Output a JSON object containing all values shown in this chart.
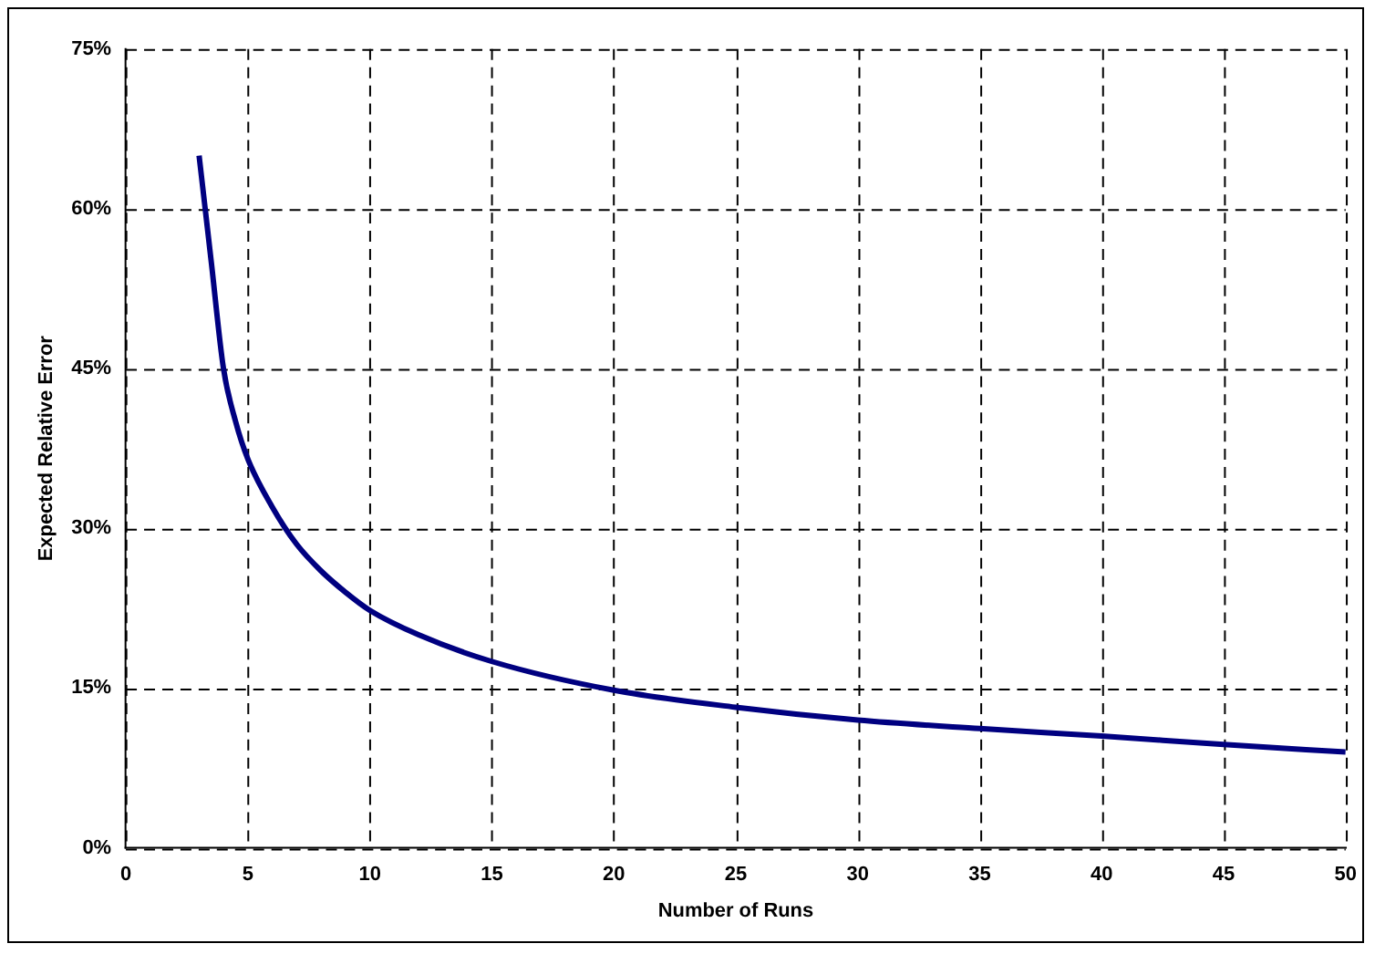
{
  "chart_data": {
    "type": "line",
    "xlabel": "Number of Runs",
    "ylabel": "Expected Relative Error",
    "x": [
      3,
      3.25,
      3.5,
      4,
      4.5,
      5,
      6,
      7,
      8,
      9,
      10,
      12,
      15,
      20,
      25,
      30,
      35,
      40,
      45,
      50
    ],
    "series": [
      {
        "color": "#000080",
        "values": [
          65,
          60,
          55,
          45,
          40,
          36.5,
          32,
          28.5,
          26,
          24,
          22.3,
          20,
          17.5,
          14.8,
          13.2,
          12,
          11.2,
          10.5,
          9.7,
          9
        ]
      }
    ],
    "xlim": [
      0,
      50
    ],
    "xticks": [
      0,
      5,
      10,
      15,
      20,
      25,
      30,
      35,
      40,
      45,
      50
    ],
    "ylim": [
      0,
      75
    ],
    "yticks": [
      {
        "value": 0,
        "label": "0%"
      },
      {
        "value": 15,
        "label": "15%"
      },
      {
        "value": 30,
        "label": "30%"
      },
      {
        "value": 45,
        "label": "45%"
      },
      {
        "value": 60,
        "label": "60%"
      },
      {
        "value": 75,
        "label": "75%"
      }
    ],
    "grid": true,
    "legend": false,
    "marker": "none",
    "line_style": "solid"
  }
}
